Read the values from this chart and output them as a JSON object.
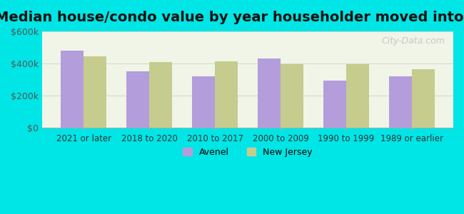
{
  "title": "Median house/condo value by year householder moved into unit",
  "categories": [
    "2021 or later",
    "2018 to 2020",
    "2010 to 2017",
    "2000 to 2009",
    "1990 to 1999",
    "1989 or earlier"
  ],
  "avenel_values": [
    480000,
    350000,
    320000,
    430000,
    295000,
    320000
  ],
  "nj_values": [
    445000,
    410000,
    415000,
    395000,
    395000,
    365000
  ],
  "avenel_color": "#b39ddb",
  "nj_color": "#c5cc8e",
  "background_color": "#00e5e5",
  "plot_bg_color": "#f0f5e8",
  "ylim": [
    0,
    600000
  ],
  "yticks": [
    0,
    200000,
    400000,
    600000
  ],
  "ytick_labels": [
    "$0",
    "$200k",
    "$400k",
    "$600k"
  ],
  "title_fontsize": 14,
  "legend_labels": [
    "Avenel",
    "New Jersey"
  ],
  "watermark": "City-Data.com"
}
